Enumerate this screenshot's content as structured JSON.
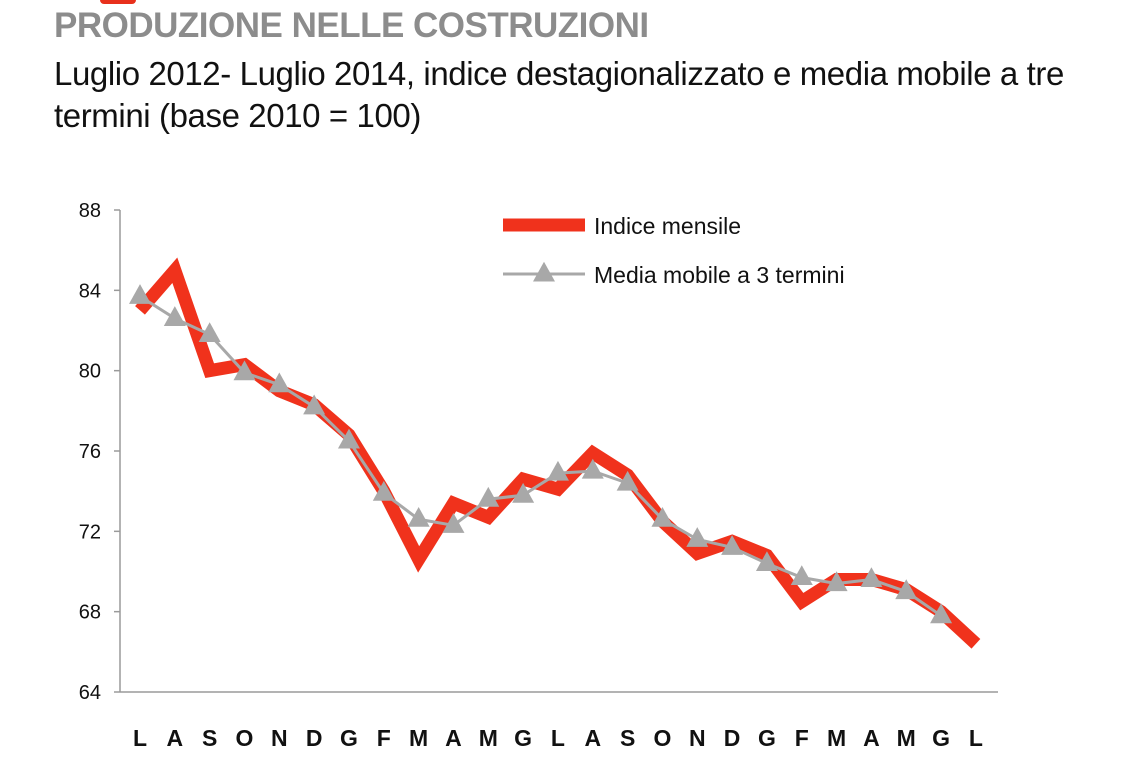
{
  "header": {
    "title": "PRODUZIONE NELLE COSTRUZIONI",
    "subtitle": "Luglio 2012- Luglio 2014, indice destagionalizzato e media mobile a tre termini (base 2010 = 100)"
  },
  "colors": {
    "accent": "#e8301c",
    "series_index": "#f0321c",
    "series_moving_average": "#a8a8a8",
    "title": "#8c8c8c"
  },
  "chart_data": {
    "type": "line",
    "categories": [
      "L",
      "A",
      "S",
      "O",
      "N",
      "D",
      "G",
      "F",
      "M",
      "A",
      "M",
      "G",
      "L",
      "A",
      "S",
      "O",
      "N",
      "D",
      "G",
      "F",
      "M",
      "A",
      "M",
      "G",
      "L"
    ],
    "ylim": [
      64,
      88
    ],
    "yticks": [
      64,
      68,
      72,
      76,
      80,
      84,
      88
    ],
    "grid": false,
    "legend_position": "top-right",
    "series": [
      {
        "name": "Indice mensile",
        "marker": "none",
        "values": [
          83.0,
          85.0,
          80.0,
          80.3,
          79.0,
          78.3,
          76.8,
          74.0,
          70.6,
          73.4,
          72.7,
          74.6,
          74.1,
          75.9,
          74.8,
          72.5,
          70.9,
          71.5,
          70.8,
          68.5,
          69.6,
          69.6,
          69.1,
          68.0,
          66.4
        ]
      },
      {
        "name": "Media mobile a 3 termini",
        "marker": "triangle",
        "values": [
          83.7,
          82.6,
          81.8,
          79.9,
          79.3,
          78.2,
          76.5,
          73.9,
          72.6,
          72.3,
          73.6,
          73.8,
          74.9,
          75.0,
          74.4,
          72.6,
          71.6,
          71.2,
          70.4,
          69.7,
          69.4,
          69.6,
          69.0,
          67.8,
          null
        ]
      }
    ]
  }
}
